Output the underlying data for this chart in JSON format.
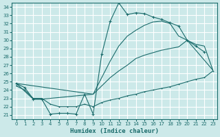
{
  "xlabel": "Humidex (Indice chaleur)",
  "bg_color": "#cce9e9",
  "grid_color": "#ffffff",
  "line_color": "#1a6b6b",
  "xlim": [
    -0.5,
    23.5
  ],
  "ylim": [
    20.5,
    34.5
  ],
  "xticks": [
    0,
    1,
    2,
    3,
    4,
    5,
    6,
    7,
    8,
    9,
    10,
    11,
    12,
    13,
    14,
    15,
    16,
    17,
    18,
    19,
    20,
    21,
    22,
    23
  ],
  "yticks": [
    21,
    22,
    23,
    24,
    25,
    26,
    27,
    28,
    29,
    30,
    31,
    32,
    33,
    34
  ],
  "curve1_x": [
    0,
    1,
    2,
    3,
    4,
    5,
    6,
    7,
    8,
    9,
    10,
    11,
    12,
    13,
    14,
    15,
    16,
    17,
    18,
    19,
    20,
    21,
    22
  ],
  "curve1_y": [
    24.8,
    24.3,
    22.9,
    22.9,
    21.1,
    21.2,
    21.2,
    21.1,
    23.5,
    21.1,
    28.3,
    32.3,
    34.5,
    33.1,
    33.3,
    33.2,
    32.8,
    32.5,
    32.1,
    31.7,
    30.0,
    29.3,
    28.6
  ],
  "curve2_x": [
    0,
    9,
    10,
    11,
    12,
    13,
    14,
    15,
    16,
    17,
    18,
    19,
    20,
    21,
    22,
    23
  ],
  "curve2_y": [
    24.8,
    23.5,
    25.5,
    27.5,
    29.3,
    30.5,
    31.2,
    31.8,
    32.2,
    32.3,
    32.0,
    30.5,
    30.0,
    29.5,
    29.3,
    26.4
  ],
  "curve3_x": [
    0,
    2,
    3,
    9,
    10,
    11,
    12,
    13,
    14,
    15,
    16,
    17,
    18,
    19,
    20,
    23
  ],
  "curve3_y": [
    24.8,
    22.9,
    22.9,
    23.5,
    24.5,
    25.5,
    26.3,
    27.0,
    27.8,
    28.2,
    28.5,
    28.8,
    29.0,
    29.2,
    30.0,
    26.4
  ],
  "curve4_x": [
    0,
    1,
    2,
    3,
    4,
    5,
    6,
    7,
    8,
    9,
    10,
    11,
    12,
    13,
    14,
    15,
    16,
    17,
    18,
    19,
    20,
    21,
    22,
    23
  ],
  "curve4_y": [
    24.5,
    24.0,
    23.0,
    23.0,
    22.3,
    22.0,
    22.0,
    22.0,
    22.3,
    22.0,
    22.5,
    22.8,
    23.0,
    23.3,
    23.5,
    23.8,
    24.0,
    24.2,
    24.4,
    24.7,
    25.0,
    25.3,
    25.5,
    26.3
  ]
}
